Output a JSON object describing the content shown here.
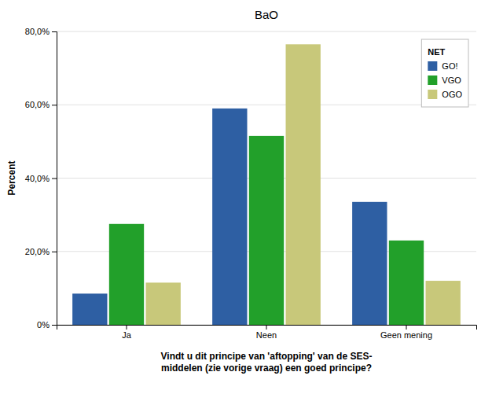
{
  "chart_data": {
    "type": "bar",
    "title": "BaO",
    "xlabel": "Vindt u dit principe van 'aftopping' van de SES-\nmiddelen (zie vorige vraag) een goed principe?",
    "ylabel": "Percent",
    "legend_title": "NET",
    "categories": [
      "Ja",
      "Neen",
      "Geen mening"
    ],
    "series": [
      {
        "name": "GO!",
        "color": "#2E5FA3",
        "values": [
          8.5,
          59.0,
          33.5
        ]
      },
      {
        "name": "VGO",
        "color": "#22A02A",
        "values": [
          27.5,
          51.5,
          23.0
        ]
      },
      {
        "name": "OGO",
        "color": "#C8C87A",
        "values": [
          11.5,
          76.5,
          12.0
        ]
      }
    ],
    "ylim": [
      0,
      80
    ],
    "yticks": [
      {
        "value": 0,
        "label": "0%"
      },
      {
        "value": 20,
        "label": "20,0%"
      },
      {
        "value": 40,
        "label": "40,0%"
      },
      {
        "value": 60,
        "label": "60,0%"
      },
      {
        "value": 80,
        "label": "80,0%"
      }
    ],
    "grid": true,
    "legend": "upper right"
  }
}
